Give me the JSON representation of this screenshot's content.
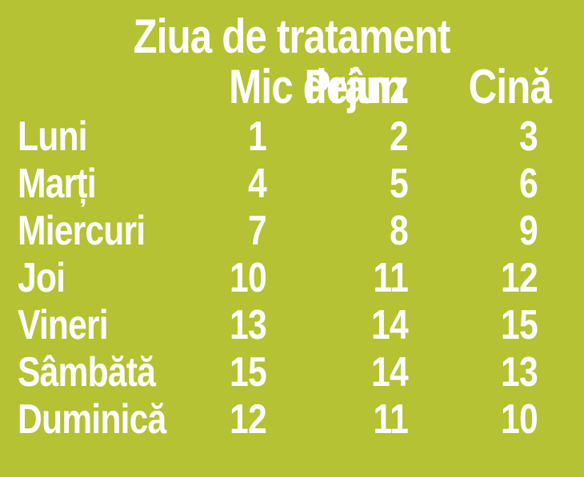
{
  "chart_data": {
    "type": "table",
    "title": "Ziua de tratament",
    "categories": [
      "Luni",
      "Marți",
      "Miercuri",
      "Joi",
      "Vineri",
      "Sâmbătă",
      "Duminică"
    ],
    "series": [
      {
        "name": "Mic dejun",
        "values": [
          1,
          4,
          7,
          10,
          13,
          15,
          12
        ]
      },
      {
        "name": "Prânz",
        "values": [
          2,
          5,
          8,
          11,
          14,
          14,
          11
        ]
      },
      {
        "name": "Cină",
        "values": [
          3,
          6,
          9,
          12,
          15,
          13,
          10
        ]
      }
    ],
    "layout_hints": {
      "day_column_alignment": "left",
      "value_columns_alignment": "right",
      "grid": "off",
      "header_position": "top"
    }
  },
  "colors": {
    "background": "#b4c234",
    "text": "#ffffff"
  }
}
